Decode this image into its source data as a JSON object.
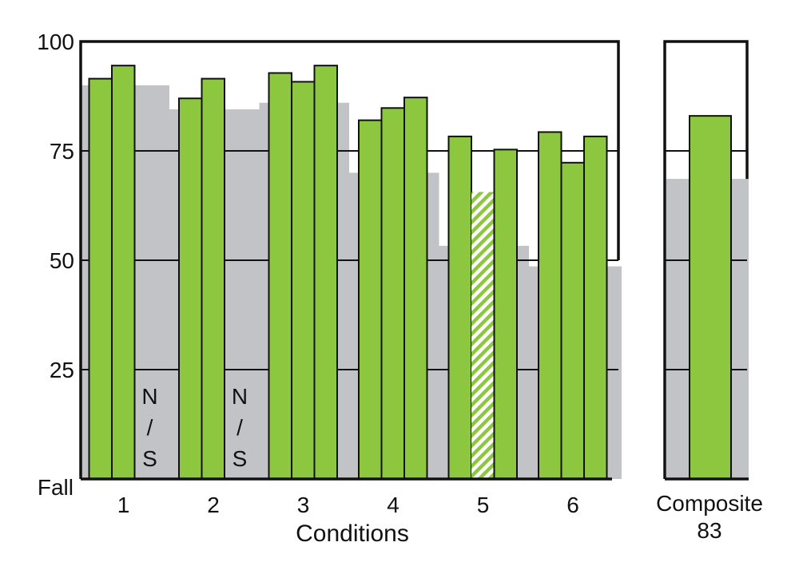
{
  "chart_data": [
    {
      "type": "bar",
      "xlabel": "Conditions",
      "y_tick_labels": [
        "Fall",
        "25",
        "50",
        "75",
        "100"
      ],
      "y_ticks": [
        0,
        25,
        50,
        75,
        100
      ],
      "ylim": [
        0,
        100
      ],
      "grid": true,
      "colors": {
        "bar": "#8dc63f",
        "background_bar": "#c2c3c6",
        "outline": "#111111"
      },
      "categories": [
        "1",
        "2",
        "3",
        "4",
        "5",
        "6"
      ],
      "groups": [
        {
          "label": "1",
          "bars": [
            91.5,
            94.5,
            null
          ],
          "background": 90,
          "not_shown_label": "N\n/\nS"
        },
        {
          "label": "2",
          "bars": [
            87,
            91.5,
            null
          ],
          "background": 84.5,
          "not_shown_label": "N\n/\nS"
        },
        {
          "label": "3",
          "bars": [
            92.8,
            90.8,
            94.5
          ],
          "background": 86
        },
        {
          "label": "4",
          "bars": [
            82,
            84.8,
            87.2
          ],
          "background": 70
        },
        {
          "label": "5",
          "bars": [
            78.3,
            65.6,
            75.3
          ],
          "background": 53.3,
          "hatched_bar_index": 1
        },
        {
          "label": "6",
          "bars": [
            79.3,
            72.3,
            78.3
          ],
          "background": 48.6
        }
      ]
    },
    {
      "type": "bar",
      "categories": [
        "Composite"
      ],
      "value_label": "83",
      "values": [
        83
      ],
      "background": 68.6,
      "ylim": [
        0,
        100
      ],
      "y_ticks": [
        0,
        25,
        50,
        75,
        100
      ]
    }
  ]
}
